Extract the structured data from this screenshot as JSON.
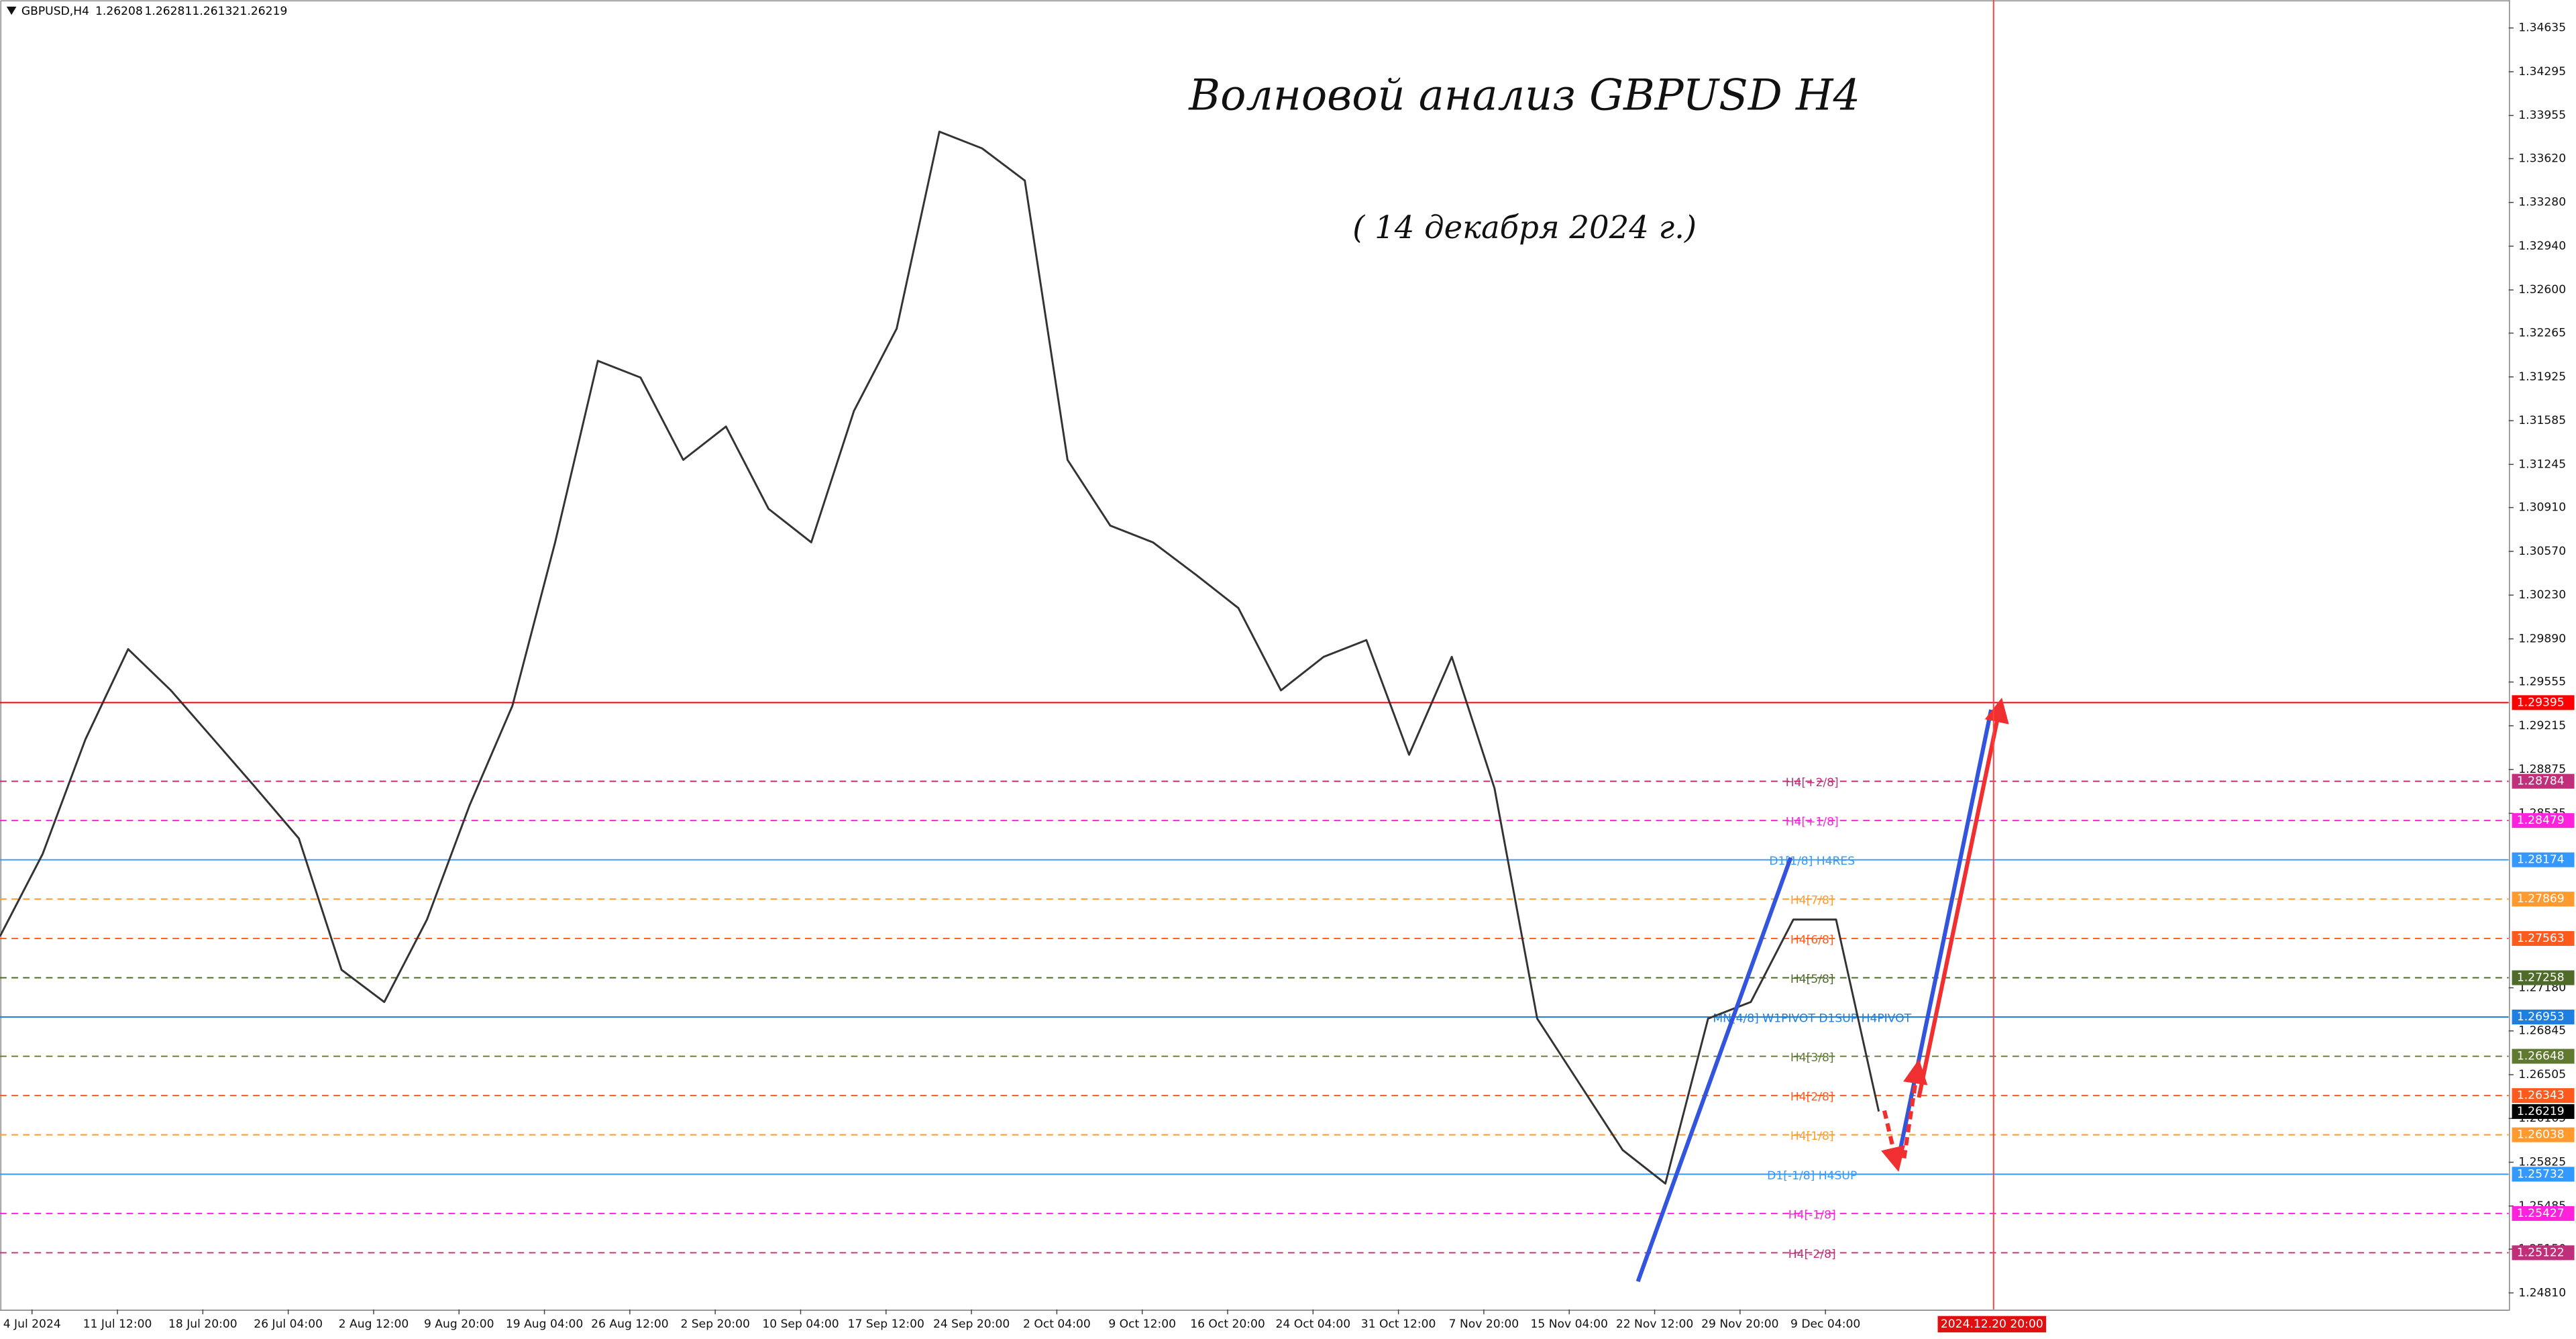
{
  "chart_data": {
    "type": "line",
    "symbol": "GBPUSD,H4",
    "ohlc": [
      1.26208,
      1.26281,
      1.26132,
      1.26219
    ],
    "title": "Волновой анализ GBPUSD H4",
    "subtitle": "( 14 декабря 2024 г.)",
    "color": "#333333",
    "x": [
      0,
      16,
      32,
      48,
      64,
      80,
      96,
      112,
      128,
      144,
      160,
      176,
      192,
      208,
      224,
      240,
      256,
      272,
      288,
      304,
      320,
      336,
      352,
      368,
      384,
      400,
      416,
      432,
      448,
      464,
      480,
      496,
      512,
      528,
      544,
      560,
      576,
      592,
      608,
      624,
      640,
      656,
      672,
      688,
      704
    ],
    "values": [
      1.2758,
      1.2822,
      1.2911,
      1.2981,
      1.2949,
      1.2911,
      1.2873,
      1.2834,
      1.2732,
      1.2707,
      1.2771,
      1.286,
      1.2937,
      1.3064,
      1.3205,
      1.3192,
      1.3128,
      1.3154,
      1.309,
      1.3064,
      1.3166,
      1.323,
      1.3383,
      1.337,
      1.3345,
      1.3128,
      1.3077,
      1.3064,
      1.3039,
      1.3013,
      1.2949,
      1.2975,
      1.2988,
      1.2899,
      1.2975,
      1.2873,
      1.2694,
      1.2643,
      1.2592,
      1.2566,
      1.2694,
      1.2707,
      1.2771,
      1.2771,
      1.26219
    ],
    "xlim": [
      0,
      940
    ],
    "xticks": [
      {
        "value": 12,
        "label": "4 Jul 2024"
      },
      {
        "value": 44,
        "label": "11 Jul 12:00"
      },
      {
        "value": 76,
        "label": "18 Jul 20:00"
      },
      {
        "value": 108,
        "label": "26 Jul 04:00"
      },
      {
        "value": 140,
        "label": "2 Aug 12:00"
      },
      {
        "value": 172,
        "label": "9 Aug 20:00"
      },
      {
        "value": 204,
        "label": "19 Aug 04:00"
      },
      {
        "value": 236,
        "label": "26 Aug 12:00"
      },
      {
        "value": 268,
        "label": "2 Sep 20:00"
      },
      {
        "value": 300,
        "label": "10 Sep 04:00"
      },
      {
        "value": 332,
        "label": "17 Sep 12:00"
      },
      {
        "value": 364,
        "label": "24 Sep 20:00"
      },
      {
        "value": 396,
        "label": "2 Oct 04:00"
      },
      {
        "value": 428,
        "label": "9 Oct 12:00"
      },
      {
        "value": 460,
        "label": "16 Oct 20:00"
      },
      {
        "value": 492,
        "label": "24 Oct 04:00"
      },
      {
        "value": 524,
        "label": "31 Oct 12:00"
      },
      {
        "value": 556,
        "label": "7 Nov 20:00"
      },
      {
        "value": 588,
        "label": "15 Nov 04:00"
      },
      {
        "value": 620,
        "label": "22 Nov 12:00"
      },
      {
        "value": 652,
        "label": "29 Nov 20:00"
      },
      {
        "value": 684,
        "label": "9 Dec 04:00"
      }
    ],
    "time_marker": {
      "value": 747,
      "label": "2024.12.20 20:00"
    },
    "ylim": [
      1.24682,
      1.34852
    ],
    "yticks": [
      {
        "value": 1.34635,
        "label": "1.34635"
      },
      {
        "value": 1.34295,
        "label": "1.34295"
      },
      {
        "value": 1.33955,
        "label": "1.33955"
      },
      {
        "value": 1.3362,
        "label": "1.33620"
      },
      {
        "value": 1.3328,
        "label": "1.33280"
      },
      {
        "value": 1.3294,
        "label": "1.32940"
      },
      {
        "value": 1.326,
        "label": "1.32600"
      },
      {
        "value": 1.32265,
        "label": "1.32265"
      },
      {
        "value": 1.31925,
        "label": "1.31925"
      },
      {
        "value": 1.31585,
        "label": "1.31585"
      },
      {
        "value": 1.31245,
        "label": "1.31245"
      },
      {
        "value": 1.3091,
        "label": "1.30910"
      },
      {
        "value": 1.3057,
        "label": "1.30570"
      },
      {
        "value": 1.3023,
        "label": "1.30230"
      },
      {
        "value": 1.2989,
        "label": "1.29890"
      },
      {
        "value": 1.29555,
        "label": "1.29555"
      },
      {
        "value": 1.29215,
        "label": "1.29215"
      },
      {
        "value": 1.28875,
        "label": "1.28875"
      },
      {
        "value": 1.28535,
        "label": "1.28535"
      },
      {
        "value": 1.2718,
        "label": "1.27180"
      },
      {
        "value": 1.26845,
        "label": "1.26845"
      },
      {
        "value": 1.26505,
        "label": "1.26505"
      },
      {
        "value": 1.26165,
        "label": "1.26165"
      },
      {
        "value": 1.25825,
        "label": "1.25825"
      },
      {
        "value": 1.25485,
        "label": "1.25485"
      },
      {
        "value": 1.2515,
        "label": "1.25150"
      },
      {
        "value": 1.2481,
        "label": "1.24810"
      }
    ],
    "levels": [
      {
        "value": 1.29395,
        "color": "#ff0000",
        "line_style": "solid"
      },
      {
        "value": 1.28784,
        "label": "H4[+2/8]",
        "color": "#c0307a",
        "line_style": "dashed"
      },
      {
        "value": 1.28479,
        "label": "H4[+1/8]",
        "color": "#ff22dd",
        "line_style": "dashed"
      },
      {
        "value": 1.28174,
        "label": "D1[1/8] H4RES",
        "color": "#3399ff",
        "line_style": "solid"
      },
      {
        "value": 1.27869,
        "label": "H4[7/8]",
        "color": "#ff9a2e",
        "line_style": "dashed"
      },
      {
        "value": 1.27563,
        "label": "H4[6/8]",
        "color": "#ff5a1e",
        "line_style": "dashed"
      },
      {
        "value": 1.27258,
        "label": "H4[5/8]",
        "color": "#4f6b2a",
        "line_style": "dashed"
      },
      {
        "value": 1.26953,
        "label": "MN[4/8] W1PIVOT D1SUP H4PIVOT",
        "color": "#1e7fe0",
        "line_style": "solid"
      },
      {
        "value": 1.26648,
        "label": "H4[3/8]",
        "color": "#5f7a30",
        "line_style": "dashed"
      },
      {
        "value": 1.26343,
        "label": "H4[2/8]",
        "color": "#ff5a1e",
        "line_style": "dashed"
      },
      {
        "value": 1.26038,
        "label": "H4[1/8]",
        "color": "#ff9a2e",
        "line_style": "dashed"
      },
      {
        "value": 1.25732,
        "label": "D1[-1/8] H4SUP",
        "color": "#3399ff",
        "line_style": "solid"
      },
      {
        "value": 1.25427,
        "label": "H4[-1/8]",
        "color": "#ff22dd",
        "line_style": "dashed"
      },
      {
        "value": 1.25122,
        "label": "H4[-2/8]",
        "color": "#c0307a",
        "line_style": "dashed"
      }
    ]
  }
}
